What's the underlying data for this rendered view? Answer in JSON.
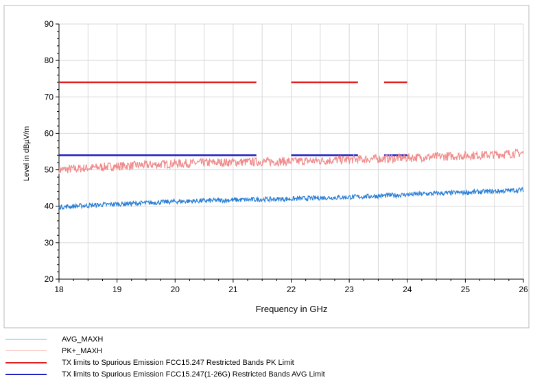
{
  "chart_data": {
    "type": "line",
    "title": "",
    "xlabel": "Frequency in GHz",
    "ylabel": "Level in dBµV/m",
    "xlim": [
      18,
      26
    ],
    "ylim": [
      20,
      90
    ],
    "x_ticks": [
      "18",
      "19",
      "20",
      "21",
      "22",
      "23",
      "24",
      "25",
      "26"
    ],
    "y_ticks": [
      "20",
      "30",
      "40",
      "50",
      "60",
      "70",
      "80",
      "90"
    ],
    "grid": true,
    "legend_position": "bottom",
    "series": [
      {
        "name": "AVG_MAXH",
        "color": "#2a7fd6",
        "x": [
          18.0,
          18.5,
          19.0,
          19.5,
          20.0,
          20.5,
          21.0,
          21.5,
          22.0,
          22.5,
          23.0,
          23.5,
          24.0,
          24.5,
          25.0,
          25.5,
          26.0
        ],
        "values": [
          39.8,
          40.2,
          40.6,
          40.9,
          41.3,
          41.5,
          41.7,
          41.9,
          42.0,
          42.3,
          42.5,
          42.8,
          43.2,
          43.5,
          43.8,
          44.1,
          44.5
        ]
      },
      {
        "name": "PK+_MAXH",
        "color": "#f08c8c",
        "x": [
          18.0,
          18.5,
          19.0,
          19.5,
          20.0,
          20.5,
          21.0,
          21.5,
          22.0,
          22.5,
          23.0,
          23.5,
          24.0,
          24.5,
          25.0,
          25.5,
          26.0
        ],
        "values": [
          50.0,
          50.5,
          51.0,
          51.3,
          51.7,
          51.9,
          52.1,
          52.2,
          52.3,
          52.5,
          52.8,
          53.0,
          53.3,
          53.6,
          53.9,
          54.2,
          54.6
        ]
      },
      {
        "name": "TX limits to Spurious Emission FCC15.247 Restricted Bands PK Limit",
        "color": "#e02020",
        "segments": [
          [
            18.0,
            21.4
          ],
          [
            22.0,
            23.15
          ],
          [
            23.6,
            24.0
          ]
        ],
        "value": 74
      },
      {
        "name": "TX limits to Spurious Emission FCC15.247(1-26G) Restricted Bands AVG Limit",
        "color": "#1c1cc0",
        "segments": [
          [
            18.0,
            21.4
          ],
          [
            22.0,
            23.15
          ],
          [
            23.6,
            24.0
          ]
        ],
        "value": 54
      }
    ]
  }
}
